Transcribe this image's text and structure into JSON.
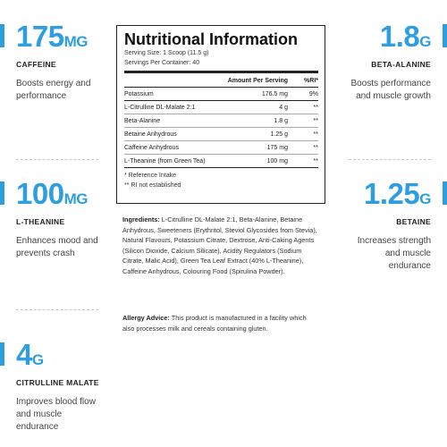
{
  "stats": {
    "caffeine": {
      "value": "175",
      "unit": "MG",
      "name": "CAFFEINE",
      "desc": "Boosts energy and performance"
    },
    "theanine": {
      "value": "100",
      "unit": "MG",
      "name": "L-THEANINE",
      "desc": "Enhances mood and prevents crash"
    },
    "citrulline": {
      "value": "4",
      "unit": "G",
      "name": "CITRULLINE MALATE",
      "desc": "Improves blood flow and muscle endurance"
    },
    "beta_alanine": {
      "value": "1.8",
      "unit": "G",
      "name": "BETA-ALANINE",
      "desc": "Boosts performance and muscle growth"
    },
    "betaine": {
      "value": "1.25",
      "unit": "G",
      "name": "BETAINE",
      "desc": "Increases strength and muscle endurance"
    }
  },
  "panel": {
    "title": "Nutritional Information",
    "serving_size": "Serving Size: 1 Scoop (11.5 g)",
    "servings_per_container": "Servings Per Container: 40",
    "col_amount": "Amount Per Serving",
    "col_ri": "%RI*",
    "rows": [
      {
        "name": "Potassium",
        "amount": "176.5 mg",
        "ri": "9%"
      },
      {
        "name": "L-Citrulline DL-Malate 2:1",
        "amount": "4 g",
        "ri": "**"
      },
      {
        "name": "Beta-Alanine",
        "amount": "1.8 g",
        "ri": "**"
      },
      {
        "name": "Betaine Anhydrous",
        "amount": "1.25 g",
        "ri": "**"
      },
      {
        "name": "Caffeine Anhydrous",
        "amount": "175 mg",
        "ri": "**"
      },
      {
        "name": "L-Theanine (from Green Tea)",
        "amount": "100 mg",
        "ri": "**"
      }
    ],
    "note1": "* Reference Intake",
    "note2": "** RI not established"
  },
  "ingredients": {
    "label": "Ingredients:",
    "text": "L-Citrulline DL-Malate 2:1, Beta-Alanine, Betaine Anhydrous, Sweeteners (Erythritol, Steviol Glycosides from Stevia), Natural Flavours, Potassium Citrate, Dextrose, Anti-Caking Agents (Silicon Dioxide, Calcium Silicate), Acidity Regulators (Sodium Citrate, Malic Acid), Green Tea Leaf Extract (40% L-Theanine), Caffeine Anhydrous, Colouring Food (Spirulina Powder)."
  },
  "allergy": {
    "label": "Allergy Advice:",
    "text": "This product is manufactured in a facility which also processes milk and cereals containing gluten."
  },
  "colors": {
    "accent": "#2f9ee0"
  }
}
